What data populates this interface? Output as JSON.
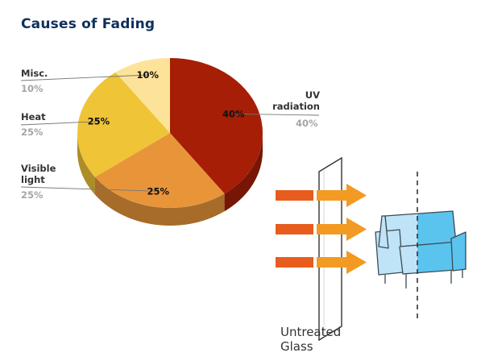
{
  "chart_data": {
    "type": "pie",
    "title": "Causes of Fading",
    "slices": [
      {
        "label": "UV radiation",
        "value": 40,
        "value_label": "40%",
        "color": "#a51e05"
      },
      {
        "label": "Visible light",
        "value": 25,
        "value_label": "25%",
        "color": "#e8953a"
      },
      {
        "label": "Heat",
        "value": 25,
        "value_label": "25%",
        "color": "#efc437"
      },
      {
        "label": "Misc.",
        "value": 10,
        "value_label": "10%",
        "color": "#fde39a"
      }
    ]
  },
  "illustration": {
    "caption_line1": "Untreated",
    "caption_line2": "Glass",
    "arrow_colors": [
      "#e85c1e",
      "#f39a23"
    ],
    "sofa_color": "#bfe4f7",
    "sofa_faded_color": "#5ac4ef",
    "icons": [
      "arrow-right-icon",
      "glass-pane-icon",
      "sofa-icon"
    ]
  }
}
